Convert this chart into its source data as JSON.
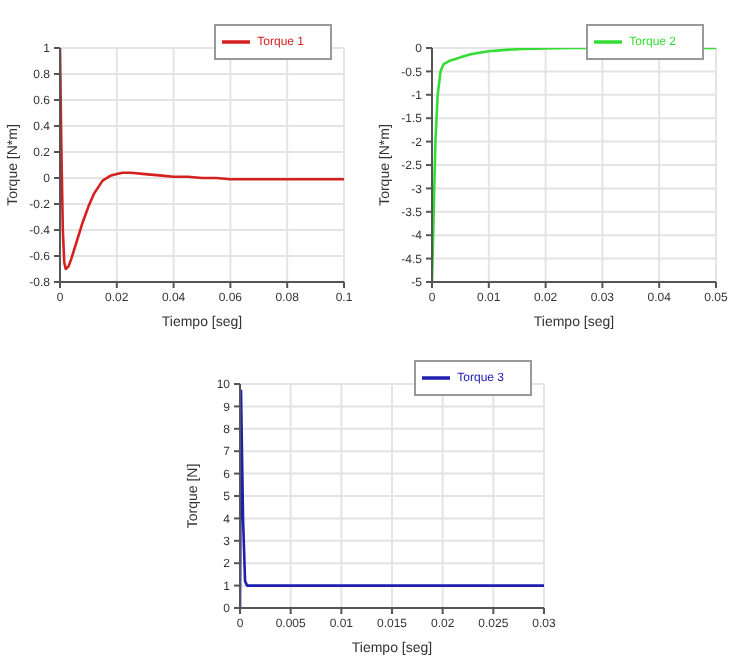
{
  "chart_data": [
    {
      "type": "line",
      "xlabel": "Tiempo [seg]",
      "ylabel": "Torque [N*m]",
      "xlim": [
        0,
        0.1
      ],
      "xticks": [
        0,
        0.02,
        0.04,
        0.06,
        0.08,
        0.1
      ],
      "ylim": [
        -0.8,
        1
      ],
      "yticks": [
        -0.8,
        -0.6,
        -0.4,
        -0.2,
        0,
        0.2,
        0.4,
        0.6,
        0.8,
        1
      ],
      "grid": true,
      "legend": "top right",
      "marker": "none",
      "line_style": "solid",
      "series": [
        {
          "name": "Torque 1",
          "color": "#d62020",
          "x": [
            0,
            0.0005,
            0.001,
            0.0015,
            0.002,
            0.003,
            0.004,
            0.006,
            0.008,
            0.01,
            0.012,
            0.015,
            0.018,
            0.02,
            0.022,
            0.025,
            0.03,
            0.035,
            0.04,
            0.045,
            0.05,
            0.055,
            0.06,
            0.07,
            0.08,
            0.09,
            0.1
          ],
          "values": [
            1,
            0.2,
            -0.4,
            -0.65,
            -0.7,
            -0.68,
            -0.62,
            -0.48,
            -0.34,
            -0.22,
            -0.12,
            -0.02,
            0.02,
            0.03,
            0.04,
            0.04,
            0.03,
            0.02,
            0.01,
            0.01,
            0,
            0,
            -0.01,
            -0.01,
            -0.01,
            -0.01,
            -0.01
          ]
        }
      ]
    },
    {
      "type": "line",
      "xlabel": "Tiempo [seg]",
      "ylabel": "Torque [N*m]",
      "xlim": [
        0,
        0.05
      ],
      "xticks": [
        0,
        0.01,
        0.02,
        0.03,
        0.04,
        0.05
      ],
      "ylim": [
        -5,
        0
      ],
      "yticks": [
        -5,
        -4.5,
        -4,
        -3.5,
        -3,
        -2.5,
        -2,
        -1.5,
        -1,
        -0.5,
        0
      ],
      "grid": true,
      "legend": "top right",
      "marker": "none",
      "line_style": "solid",
      "series": [
        {
          "name": "Torque 2",
          "color": "#33dd33",
          "x": [
            0,
            0.0003,
            0.0006,
            0.001,
            0.0015,
            0.002,
            0.003,
            0.004,
            0.005,
            0.007,
            0.01,
            0.013,
            0.016,
            0.02,
            0.025,
            0.03,
            0.04,
            0.05
          ],
          "values": [
            -5,
            -3.5,
            -2,
            -1,
            -0.5,
            -0.35,
            -0.28,
            -0.24,
            -0.2,
            -0.13,
            -0.07,
            -0.04,
            -0.02,
            -0.01,
            0,
            0,
            0,
            0
          ]
        }
      ]
    },
    {
      "type": "line",
      "xlabel": "Tiempo [seg]",
      "ylabel": "Torque [N]",
      "xlim": [
        0,
        0.03
      ],
      "xticks": [
        0,
        0.005,
        0.01,
        0.015,
        0.02,
        0.025,
        0.03
      ],
      "ylim": [
        0,
        10
      ],
      "yticks": [
        0,
        1,
        2,
        3,
        4,
        5,
        6,
        7,
        8,
        9,
        10
      ],
      "grid": true,
      "legend": "top right",
      "marker": "none",
      "line_style": "solid",
      "series": [
        {
          "name": "Torque 3",
          "color": "#2020b0",
          "x": [
            0,
            0.0001,
            0.0003,
            0.0005,
            0.0007,
            0.001,
            0.005,
            0.01,
            0.02,
            0.03
          ],
          "values": [
            0,
            9.7,
            4,
            1.2,
            1,
            1,
            1,
            1,
            1,
            1
          ]
        }
      ]
    }
  ]
}
